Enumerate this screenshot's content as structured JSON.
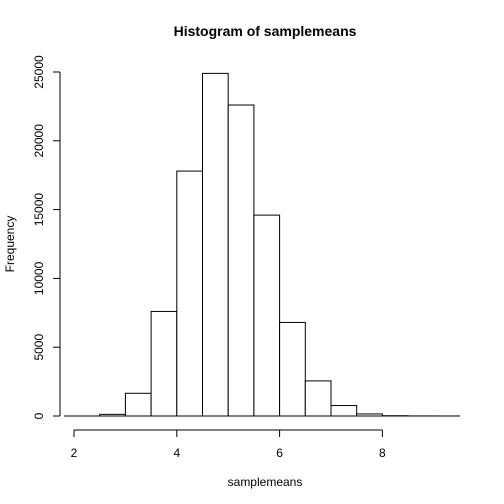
{
  "chart_data": {
    "type": "bar",
    "title": "Histogram of samplemeans",
    "xlabel": "samplemeans",
    "ylabel": "Frequency",
    "bin_edges": [
      2.5,
      3.0,
      3.5,
      4.0,
      4.5,
      5.0,
      5.5,
      6.0,
      6.5,
      7.0,
      7.5,
      8.0,
      8.5,
      9.0,
      9.5
    ],
    "values": [
      120,
      1650,
      7600,
      17800,
      24900,
      22600,
      14600,
      6800,
      2550,
      760,
      150,
      20,
      5,
      2
    ],
    "xlim": [
      2,
      9.5
    ],
    "ylim": [
      0,
      25000
    ],
    "x_ticks": [
      2,
      4,
      6,
      8
    ],
    "y_ticks": [
      0,
      5000,
      10000,
      15000,
      20000,
      25000
    ],
    "grid": false
  }
}
